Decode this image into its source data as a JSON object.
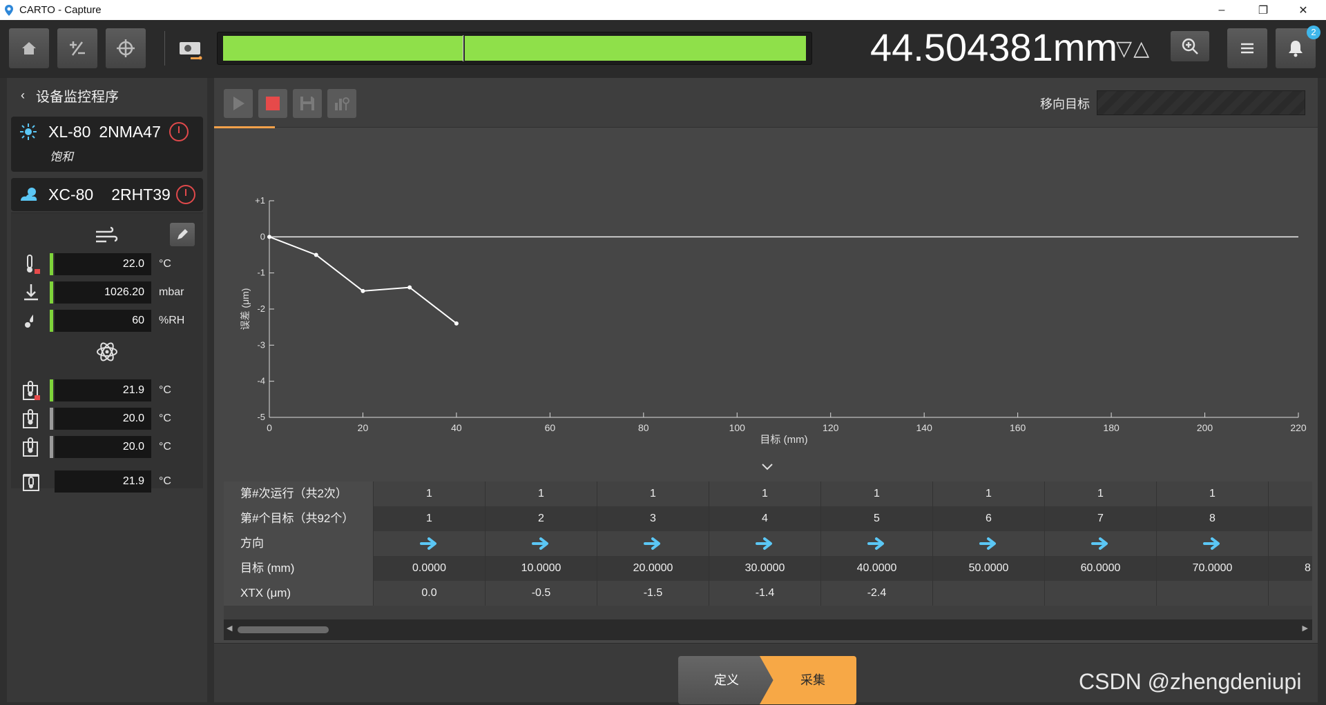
{
  "window": {
    "title": "CARTO - Capture",
    "minimize": "–",
    "restore": "❐",
    "close": "✕"
  },
  "toolbar": {
    "home_icon": "home-icon",
    "plus_minus_icon": "plus-minus-icon",
    "target_icon": "crosshair-icon",
    "laser_icon": "laser-icon",
    "progress_fraction": 0.41,
    "progress_fill_fraction": 0.998,
    "readout": "44.504381mm",
    "direction_arrows": "▽△",
    "notification_count": "2"
  },
  "left_panel": {
    "back_label": "设备监控程序",
    "laser": {
      "model": "XL-80",
      "serial": "2NMA47",
      "status": "饱和"
    },
    "compensator": {
      "model": "XC-80",
      "serial": "2RHT39"
    },
    "environment": [
      {
        "value": "22.0",
        "unit": "°C",
        "icon": "air-temperature-icon",
        "bar_color": "#7ed33a"
      },
      {
        "value": "1026.20",
        "unit": "mbar",
        "icon": "pressure-icon",
        "bar_color": "#7ed33a"
      },
      {
        "value": "60",
        "unit": "%RH",
        "icon": "humidity-icon",
        "bar_color": "#7ed33a"
      }
    ],
    "material": [
      {
        "value": "21.9",
        "unit": "°C",
        "icon": "material-temp-1-icon",
        "bar_color": "#7ed33a"
      },
      {
        "value": "20.0",
        "unit": "°C",
        "icon": "material-temp-2-icon",
        "bar_color": "#9a9a9a"
      },
      {
        "value": "20.0",
        "unit": "°C",
        "icon": "material-temp-3-icon",
        "bar_color": "#9a9a9a"
      },
      {
        "value": "21.9",
        "unit": "°C",
        "icon": "material-temp-avg-icon",
        "bar_color": ""
      }
    ]
  },
  "main": {
    "move_target_label": "移向目标"
  },
  "chart_data": {
    "type": "line",
    "xlabel": "目标 (mm)",
    "ylabel": "误差 (μm)",
    "xlim": [
      0,
      220
    ],
    "ylim": [
      -5,
      1
    ],
    "x_ticks": [
      "0",
      "20",
      "40",
      "60",
      "80",
      "100",
      "120",
      "140",
      "160",
      "180",
      "200",
      "220"
    ],
    "y_ticks": [
      "+1",
      "0",
      "-1",
      "-2",
      "-3",
      "-4",
      "-5"
    ],
    "series": [
      {
        "x": [
          0,
          10,
          20,
          30,
          40
        ],
        "y": [
          0.0,
          -0.5,
          -1.5,
          -1.4,
          -2.4
        ]
      }
    ],
    "reference_line_y": 0
  },
  "table": {
    "row_labels": [
      "第#次运行（共2次）",
      "第#个目标（共92个）",
      "方向",
      "目标 (mm)",
      "XTX (μm)"
    ],
    "columns": [
      {
        "run": "1",
        "target_no": "1",
        "dir": "→",
        "target": "0.0000",
        "xtx": "0.0"
      },
      {
        "run": "1",
        "target_no": "2",
        "dir": "→",
        "target": "10.0000",
        "xtx": "-0.5"
      },
      {
        "run": "1",
        "target_no": "3",
        "dir": "→",
        "target": "20.0000",
        "xtx": "-1.5"
      },
      {
        "run": "1",
        "target_no": "4",
        "dir": "→",
        "target": "30.0000",
        "xtx": "-1.4"
      },
      {
        "run": "1",
        "target_no": "5",
        "dir": "→",
        "target": "40.0000",
        "xtx": "-2.4"
      },
      {
        "run": "1",
        "target_no": "6",
        "dir": "→",
        "target": "50.0000",
        "xtx": ""
      },
      {
        "run": "1",
        "target_no": "7",
        "dir": "→",
        "target": "60.0000",
        "xtx": ""
      },
      {
        "run": "1",
        "target_no": "8",
        "dir": "→",
        "target": "70.0000",
        "xtx": ""
      },
      {
        "run": "",
        "target_no": "",
        "dir": "",
        "target": "8",
        "xtx": ""
      }
    ],
    "scroll_left": "◀",
    "scroll_right": "▶"
  },
  "bottom": {
    "define_label": "定义",
    "capture_label": "采集"
  },
  "watermark": "CSDN @zhengdeniupi"
}
